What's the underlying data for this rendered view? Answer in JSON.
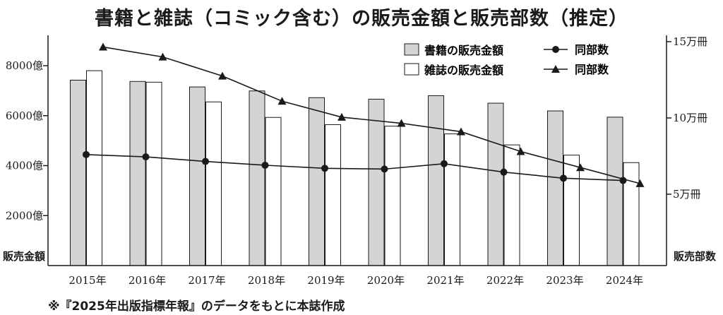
{
  "page": {
    "title": "書籍と雑誌（コミック含む）の販売金額と販売部数（推定）",
    "footnote": "※『2025年出版指標年報』のデータをもとに本誌作成"
  },
  "colors": {
    "book_bar": "#d4d4d4",
    "magazine_bar": "#ffffff",
    "line": "#1a1a1a",
    "axis": "#1a1a1a"
  },
  "chart_data": {
    "type": "bar",
    "categories": [
      "2015年",
      "2016年",
      "2017年",
      "2018年",
      "2019年",
      "2020年",
      "2021年",
      "2022年",
      "2023年",
      "2024年"
    ],
    "ylabel": "販売金額",
    "y2label": "販売部数",
    "ylim": [
      0,
      9000
    ],
    "yticks": [
      2000,
      4000,
      6000,
      8000
    ],
    "ytick_labels": [
      "2000億",
      "4000億",
      "6000億",
      "8000億"
    ],
    "y2lim": [
      0,
      175
    ],
    "y2ticks": [
      50,
      100,
      150
    ],
    "y2tick_labels": [
      "5万冊",
      "10万冊",
      "15万冊"
    ],
    "series": [
      {
        "name": "書籍の販売金額",
        "type": "bar",
        "axis": "left",
        "values": [
          7420,
          7370,
          7150,
          6990,
          6720,
          6660,
          6800,
          6500,
          6190,
          5940
        ]
      },
      {
        "name": "雑誌の販売金額",
        "type": "bar",
        "axis": "left",
        "values": [
          7800,
          7340,
          6550,
          5930,
          5640,
          5580,
          5270,
          4830,
          4420,
          4120
        ]
      },
      {
        "name": "同部数",
        "type": "line",
        "marker": "circle",
        "axis": "right",
        "values": [
          76,
          74.5,
          71.5,
          69,
          67,
          66.5,
          70,
          64.5,
          60.5,
          59
        ]
      },
      {
        "name": "同部数",
        "type": "line",
        "marker": "triangle",
        "axis": "right",
        "values": [
          146.5,
          140,
          127.5,
          111,
          100.5,
          96.5,
          91,
          78,
          67.5,
          57
        ]
      }
    ],
    "legend": "top-right",
    "grid": false
  }
}
